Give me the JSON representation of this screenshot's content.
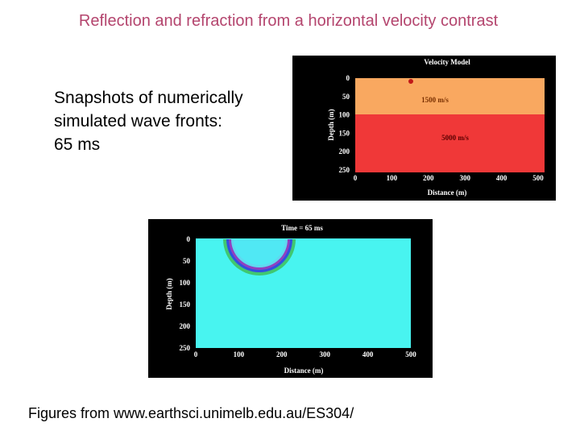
{
  "title": "Reflection and refraction from a horizontal velocity contrast",
  "body": [
    "Snapshots of numerically",
    "simulated wave fronts:",
    "65 ms"
  ],
  "figures": [
    {
      "title": "Velocity Model",
      "x_label": "Distance (m)",
      "y_label": "Depth (m)",
      "x_ticks": [
        0,
        100,
        200,
        300,
        400,
        500
      ],
      "y_ticks": [
        0,
        50,
        100,
        150,
        200,
        250
      ],
      "layers": [
        "1500 m/s",
        "5000 m/s"
      ]
    },
    {
      "title": "Time = 65 ms",
      "x_label": "Distance (m)",
      "y_label": "Depth (m)",
      "x_ticks": [
        0,
        100,
        200,
        300,
        400,
        500
      ],
      "y_ticks": [
        0,
        50,
        100,
        150,
        200,
        250
      ]
    }
  ],
  "caption": "Figures from www.earthsci.unimelb.edu.au/ES304/"
}
